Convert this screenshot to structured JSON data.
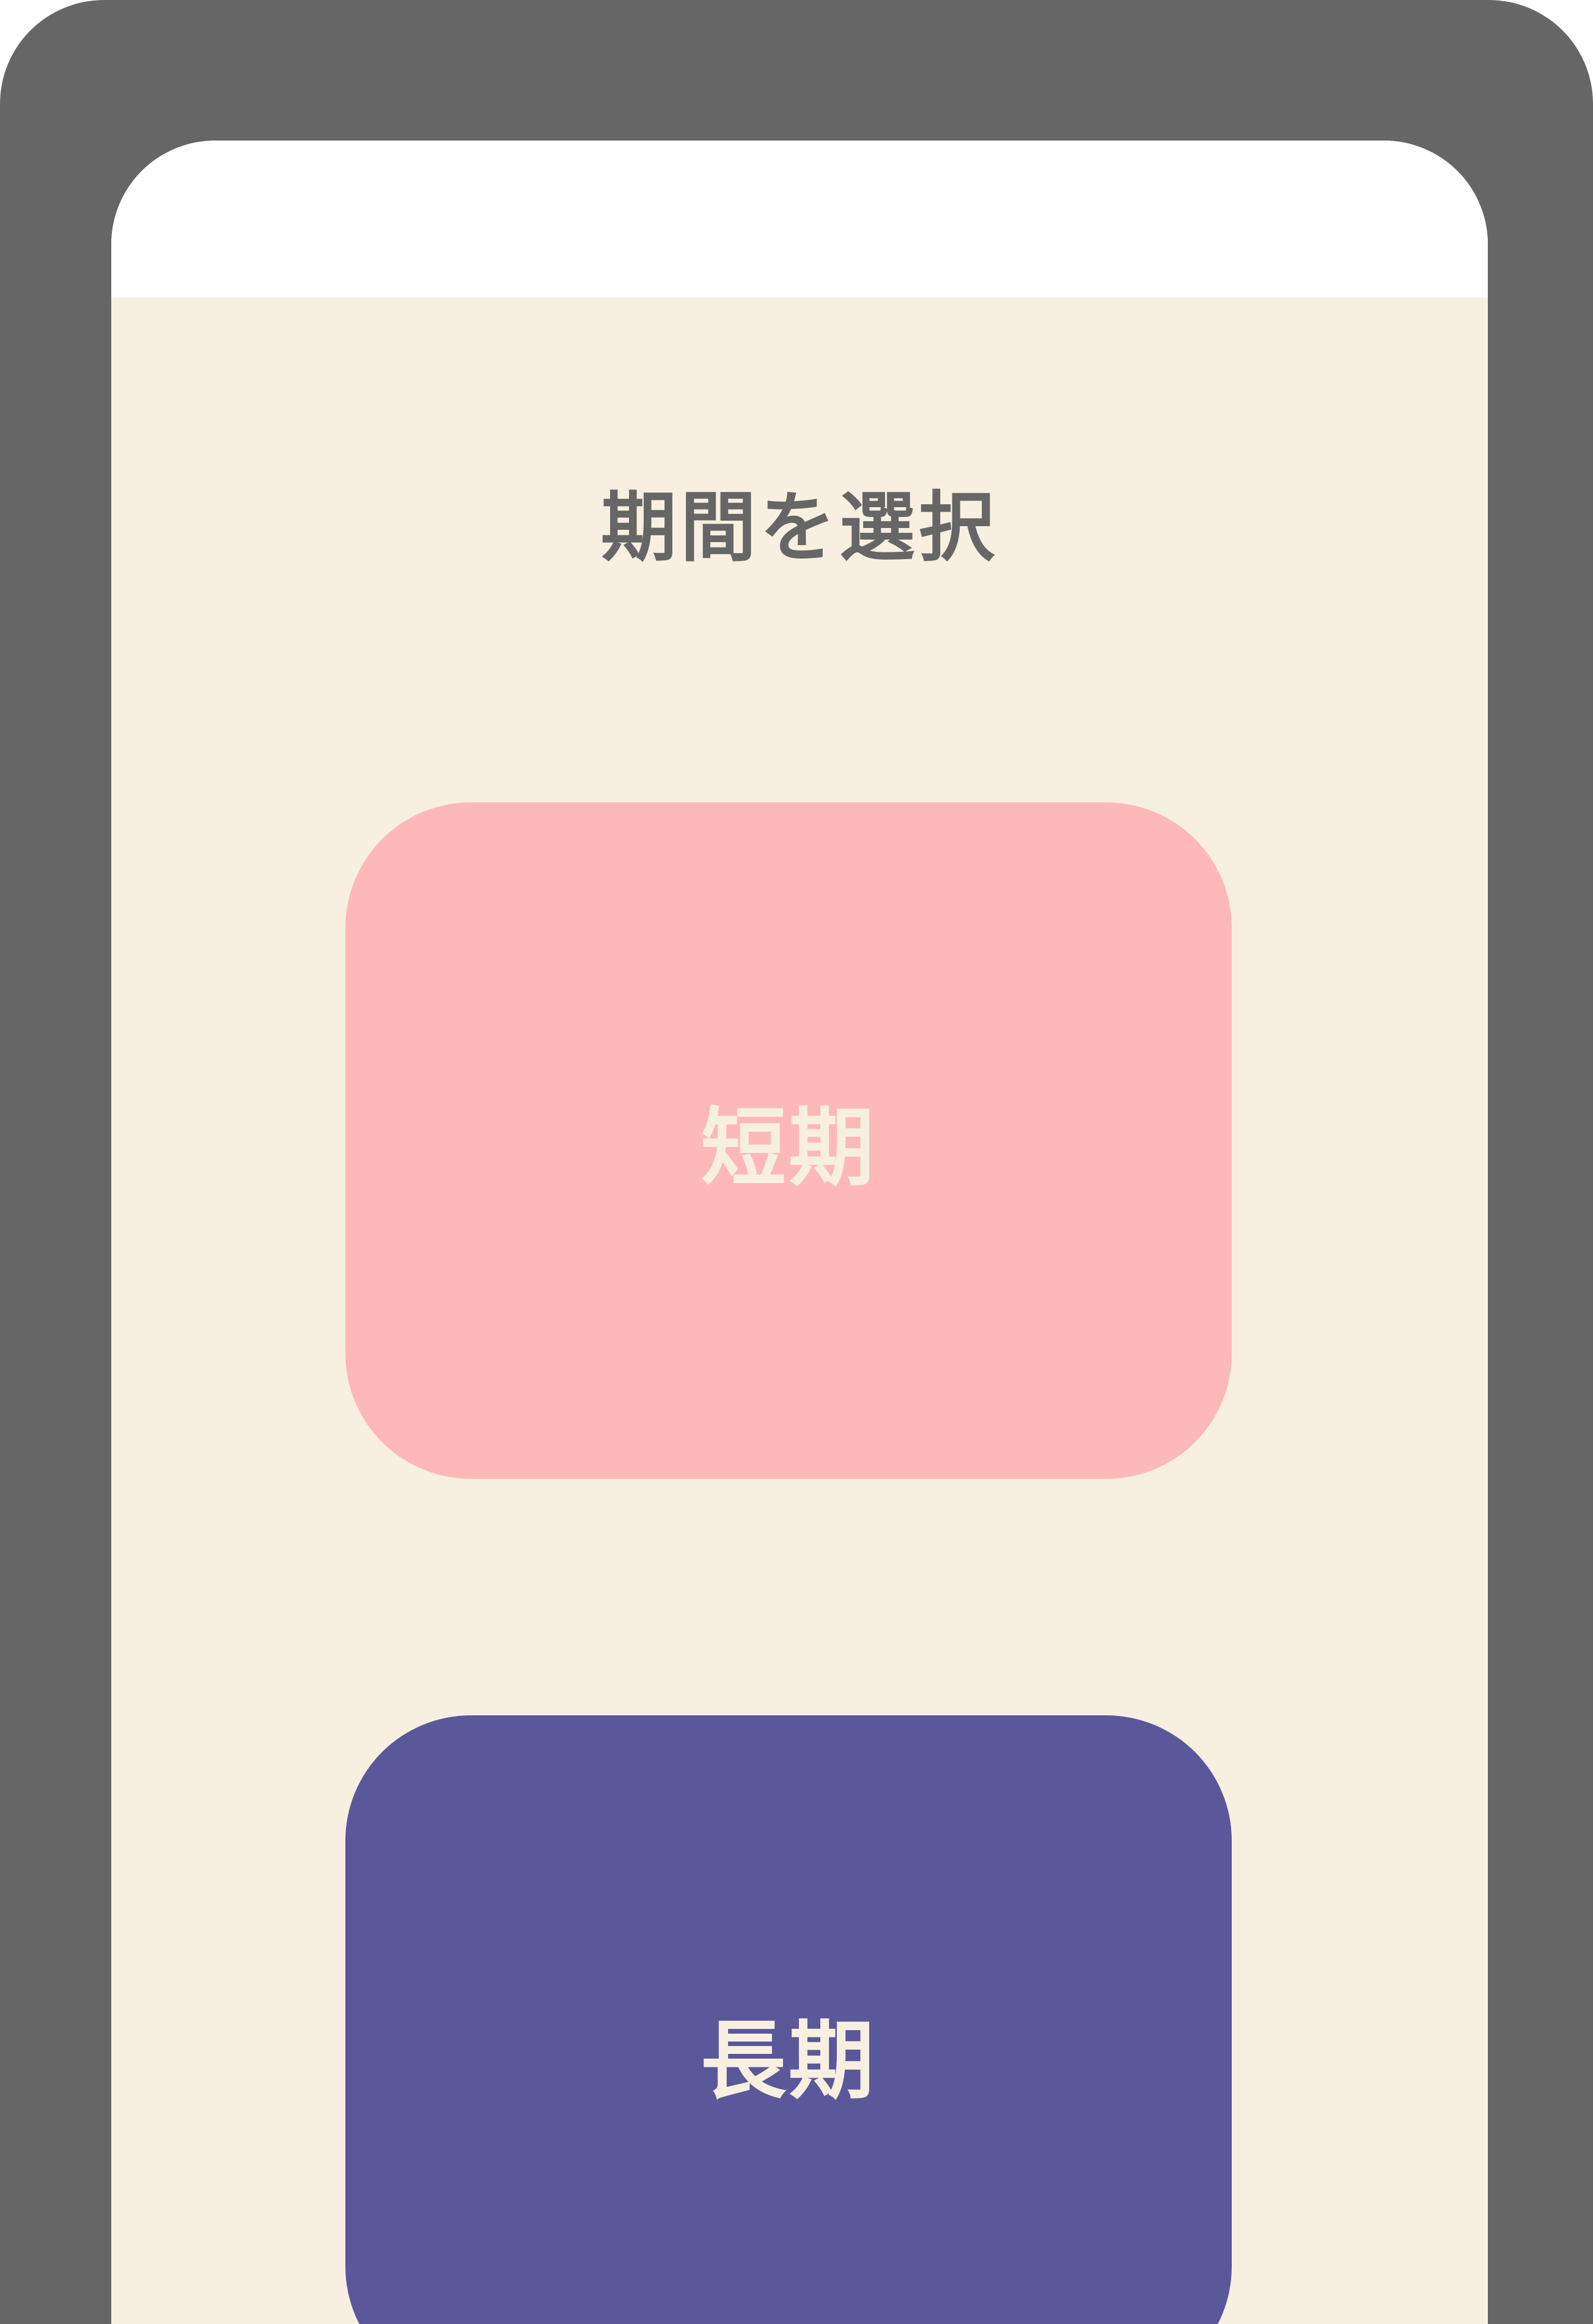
{
  "colors": {
    "frame": "#666666",
    "status_bar": "#ffffff",
    "background": "#f7f0e0",
    "title_text": "#666666",
    "short_button": "#fdb9b9",
    "long_button": "#5a579b",
    "button_text": "#f7f0e0"
  },
  "header": {
    "title": "期間を選択"
  },
  "options": {
    "short": {
      "label": "短期"
    },
    "long": {
      "label": "長期"
    }
  }
}
